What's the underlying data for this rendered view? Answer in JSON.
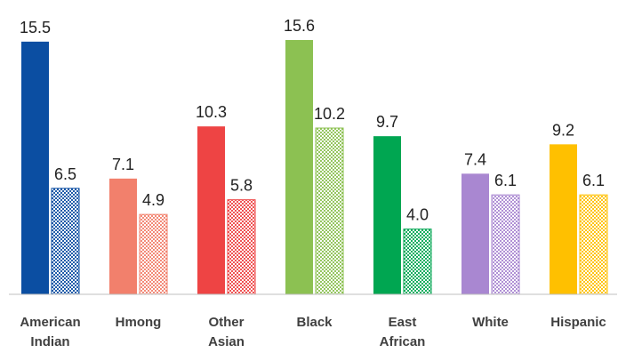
{
  "chart_data": {
    "type": "bar",
    "categories": [
      [
        "American",
        "Indian"
      ],
      [
        "Hmong"
      ],
      [
        "Other",
        "Asian"
      ],
      [
        "Black"
      ],
      [
        "East",
        "African"
      ],
      [
        "White"
      ],
      [
        "Hispanic"
      ]
    ],
    "series": [
      {
        "values": [
          15.5,
          7.1,
          10.3,
          15.6,
          9.7,
          7.4,
          9.2
        ],
        "labels": [
          "15.5",
          "7.1",
          "10.3",
          "15.6",
          "9.7",
          "7.4",
          "9.2"
        ],
        "fill": "solid"
      },
      {
        "values": [
          6.5,
          4.9,
          5.8,
          10.2,
          4.0,
          6.1,
          6.1
        ],
        "labels": [
          "6.5",
          "4.9",
          "5.8",
          "10.2",
          "4.0",
          "6.1",
          "6.1"
        ],
        "fill": "dotted-pattern"
      }
    ],
    "colors": [
      "#0B4EA2",
      "#F2806C",
      "#EE4444",
      "#8CC152",
      "#00A651",
      "#A987D1",
      "#FFC000"
    ],
    "ylim": [
      0,
      17.5
    ],
    "grid": false,
    "legend": "none",
    "title": "",
    "xlabel": "",
    "ylabel": ""
  }
}
